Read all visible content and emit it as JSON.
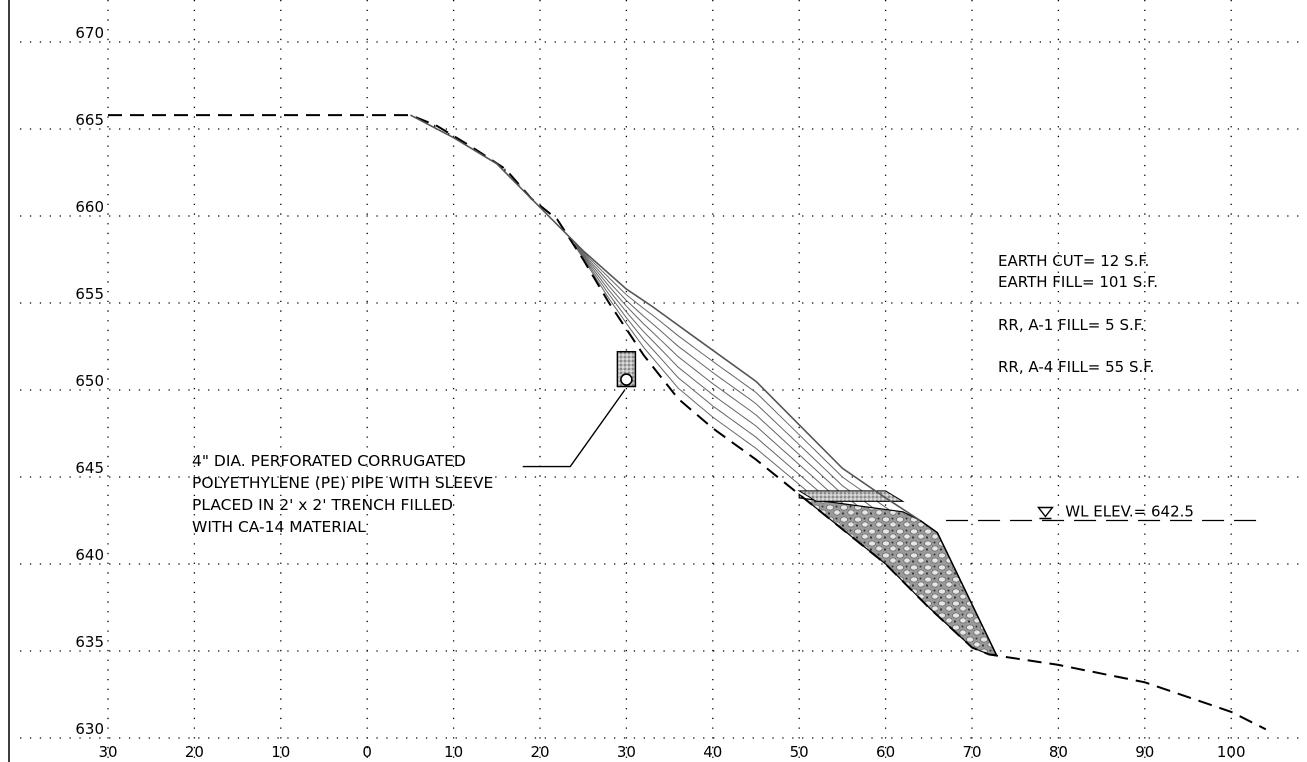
{
  "drawing": {
    "x_axis": {
      "min": -30,
      "max": 100,
      "step": 10,
      "tick_labels": [
        "30",
        "20",
        "10",
        "0",
        "10",
        "20",
        "30",
        "40",
        "50",
        "60",
        "70",
        "80",
        "90",
        "100"
      ]
    },
    "y_axis": {
      "min": 630,
      "max": 670,
      "step": 5,
      "tick_labels": [
        "630",
        "635",
        "640",
        "645",
        "650",
        "655",
        "660",
        "665",
        "670"
      ]
    },
    "grid": "dotted",
    "existing_ground": [
      [
        -30,
        665.8
      ],
      [
        5,
        665.8
      ],
      [
        8,
        665.2
      ],
      [
        12,
        664
      ],
      [
        16,
        662.7
      ],
      [
        19,
        661
      ],
      [
        22,
        659.8
      ],
      [
        25,
        657.5
      ],
      [
        28,
        655
      ],
      [
        32,
        652
      ],
      [
        36,
        649.5
      ],
      [
        40,
        647.8
      ],
      [
        45,
        646
      ],
      [
        50,
        644
      ],
      [
        55,
        642
      ],
      [
        60,
        640
      ],
      [
        65,
        637.5
      ],
      [
        70,
        635.2
      ],
      [
        72,
        634.8
      ],
      [
        80,
        634.2
      ],
      [
        90,
        633.2
      ],
      [
        100,
        631.5
      ],
      [
        104,
        630.5
      ]
    ],
    "proposed_grade": [
      [
        5,
        665.8
      ],
      [
        10,
        664.5
      ],
      [
        15,
        663
      ],
      [
        20,
        660.5
      ],
      [
        25,
        658
      ],
      [
        30,
        655.8
      ],
      [
        33,
        654.8
      ],
      [
        38,
        653
      ],
      [
        45,
        650.5
      ],
      [
        50,
        648
      ],
      [
        55,
        645.5
      ],
      [
        60,
        643.8
      ],
      [
        64,
        642.5
      ]
    ],
    "slope_face": [
      [
        64,
        642.5
      ],
      [
        66,
        641.8
      ],
      [
        72.8,
        634.8
      ]
    ],
    "cut_hatch_count": 8,
    "fill_hatch_count": 6,
    "riprap_a1_top": 643.8,
    "water_line": {
      "label": "WL ELEV.= 642.5",
      "elevation": 642.5,
      "x_start": 67,
      "x_end": 103
    },
    "pipe": {
      "x": 30,
      "y_bottom": 650.2,
      "y_top": 652.2
    },
    "pipe_note": {
      "lines": [
        "4\" DIA. PERFORATED CORRUGATED",
        "POLYETHYLENE (PE) PIPE WITH SLEEVE",
        "PLACED IN 2' x 2' TRENCH FILLED",
        "WITH CA-14 MATERIAL"
      ]
    },
    "quantities": {
      "earth_cut": "EARTH  CUT= 12 S.F.",
      "earth_fill": "EARTH  FILL= 101 S.F.",
      "rr_a1_fill": "RR, A-1 FILL= 5 S.F.",
      "rr_a4_fill": "RR, A-4 FILL= 55 S.F."
    }
  }
}
